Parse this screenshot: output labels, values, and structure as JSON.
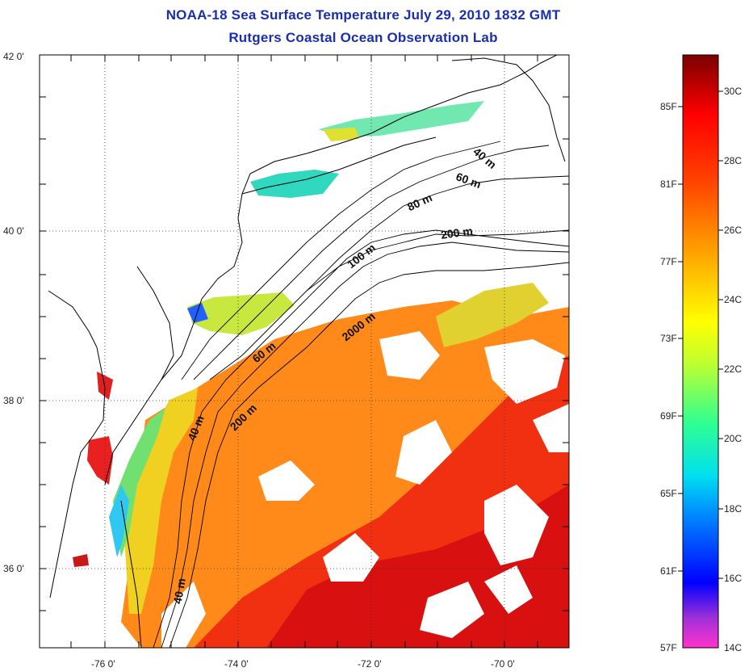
{
  "title": "NOAA-18 Sea Surface Temperature July 29, 2010 1832 GMT",
  "subtitle": "Rutgers Coastal Ocean Observation Lab",
  "map": {
    "lon_range": [
      -77.0,
      -69.0
    ],
    "lat_range": [
      35.0,
      42.0
    ],
    "lon_ticks": [
      {
        "value": -76,
        "label": "-76 0'"
      },
      {
        "value": -74,
        "label": "-74 0'"
      },
      {
        "value": -72,
        "label": "-72 0'"
      },
      {
        "value": -70,
        "label": "-70 0'"
      }
    ],
    "lat_ticks": [
      {
        "value": 42,
        "label": "42 0'"
      },
      {
        "value": 40,
        "label": "40 0'"
      },
      {
        "value": 38,
        "label": "38 0'"
      },
      {
        "value": 36,
        "label": "36 0'"
      }
    ],
    "grid": "dotted",
    "depth_labels": [
      "40 m",
      "60 m",
      "80 m",
      "200 m",
      "100 m",
      "2000 m",
      "60 m",
      "200 m",
      "40 m",
      "40 m"
    ]
  },
  "colorbar": {
    "fahrenheit": [
      "85F",
      "81F",
      "77F",
      "73F",
      "69F",
      "65F",
      "61F",
      "57F"
    ],
    "celsius": [
      "30C",
      "28C",
      "26C",
      "24C",
      "22C",
      "20C",
      "18C",
      "16C",
      "14C"
    ],
    "colors": [
      "#ff33cc",
      "#6a2ad0",
      "#0000ff",
      "#00c8ff",
      "#00ffb0",
      "#80ff40",
      "#ffff00",
      "#ffa500",
      "#ff4000",
      "#ff0000",
      "#7a0000"
    ]
  }
}
